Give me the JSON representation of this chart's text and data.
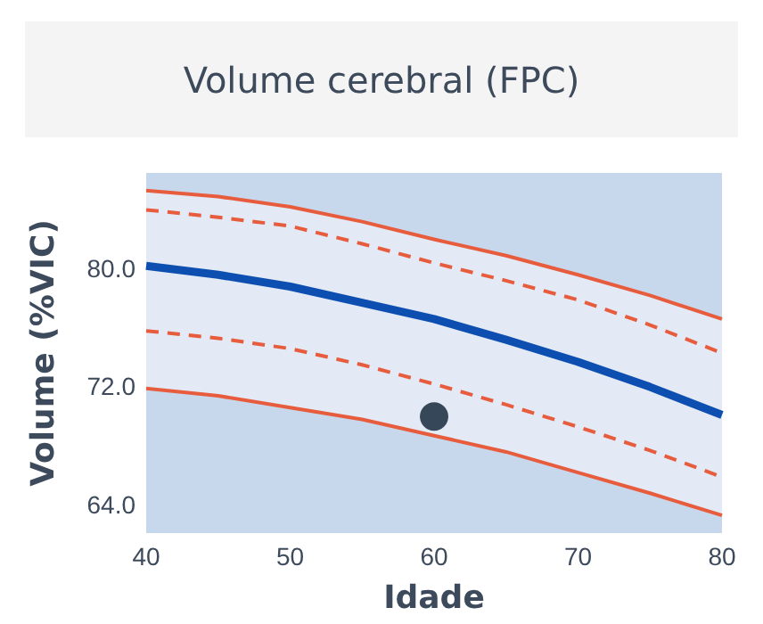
{
  "chart_data": {
    "type": "line",
    "title": "Volume cerebral (FPC)",
    "xlabel": "Idade",
    "ylabel": "Volume (%VIC)",
    "x": [
      40,
      45,
      50,
      55,
      60,
      65,
      70,
      75,
      80
    ],
    "xlim": [
      40,
      80
    ],
    "xticks": [
      40,
      50,
      60,
      70,
      80
    ],
    "ylim": [
      62.1,
      86.5
    ],
    "bands": [
      {
        "axis": "y",
        "from": 62.1,
        "to": 86.5,
        "color": "#c8d8ec"
      }
    ],
    "yticks": [
      {
        "value": 64,
        "label": "64.0"
      },
      {
        "value": 72,
        "label": "72.0"
      },
      {
        "value": 80,
        "label": "80.0"
      }
    ],
    "series": [
      {
        "color": "#0d4fb0",
        "values": [
          80.2,
          79.6,
          78.8,
          77.7,
          76.6,
          75.2,
          73.7,
          72.0,
          70.1
        ],
        "lower": [
          71.9,
          71.4,
          70.6,
          69.8,
          68.7,
          67.6,
          66.2,
          64.8,
          63.3
        ],
        "upper": [
          85.3,
          84.9,
          84.2,
          83.2,
          82.0,
          80.9,
          79.6,
          78.2,
          76.6
        ]
      },
      {
        "color": "#e85c3e",
        "line_style": "solid",
        "values": [
          85.3,
          84.9,
          84.2,
          83.2,
          82.0,
          80.9,
          79.6,
          78.2,
          76.6
        ]
      },
      {
        "color": "#e85c3e",
        "line_style": "dashed",
        "values": [
          84.0,
          83.5,
          82.9,
          81.7,
          80.4,
          79.2,
          77.9,
          76.2,
          74.3
        ]
      },
      {
        "color": "#e85c3e",
        "line_style": "dashed",
        "values": [
          75.8,
          75.3,
          74.6,
          73.5,
          72.2,
          70.8,
          69.3,
          67.7,
          65.9
        ]
      },
      {
        "color": "#e85c3e",
        "line_style": "solid",
        "values": [
          71.9,
          71.4,
          70.6,
          69.8,
          68.7,
          67.6,
          66.2,
          64.8,
          63.3
        ]
      },
      {
        "type": "scatter",
        "color": "#37475a",
        "marker": "circle",
        "x": [
          60
        ],
        "values": [
          70.0
        ]
      }
    ]
  }
}
